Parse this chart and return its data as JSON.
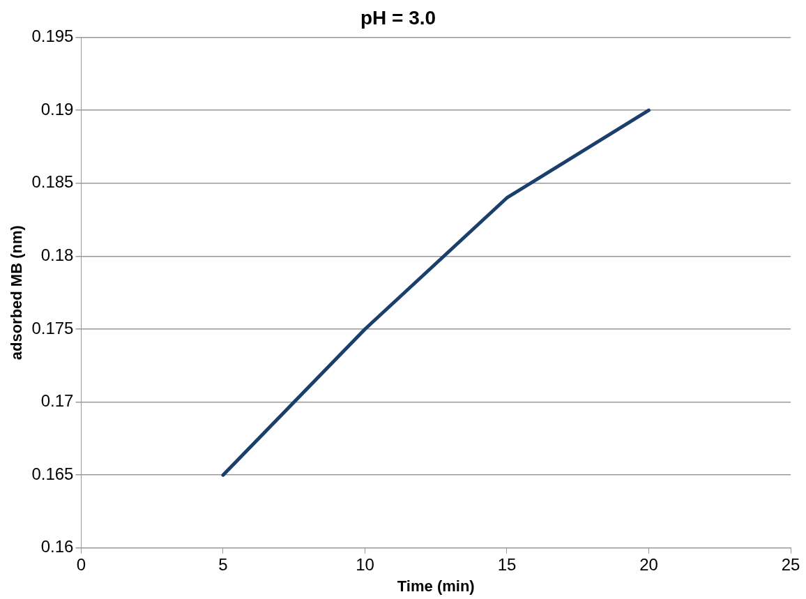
{
  "chart_data": {
    "type": "line",
    "title": "pH = 3.0",
    "xlabel": "Time (min)",
    "ylabel": "adsorbed MB (nm)",
    "x": [
      5,
      10,
      15,
      20
    ],
    "series": [
      {
        "color": "#1a3f6b",
        "values": [
          0.165,
          0.175,
          0.184,
          0.19
        ]
      }
    ],
    "xlim": [
      0,
      25
    ],
    "xticks": [
      0,
      5,
      10,
      15,
      20,
      25
    ],
    "ylim": [
      0.16,
      0.195
    ],
    "yticks": [
      0.16,
      0.165,
      0.17,
      0.175,
      0.18,
      0.185,
      0.19,
      0.195
    ],
    "grid": "y",
    "legend": false,
    "marker": "none",
    "line_style": "solid"
  }
}
